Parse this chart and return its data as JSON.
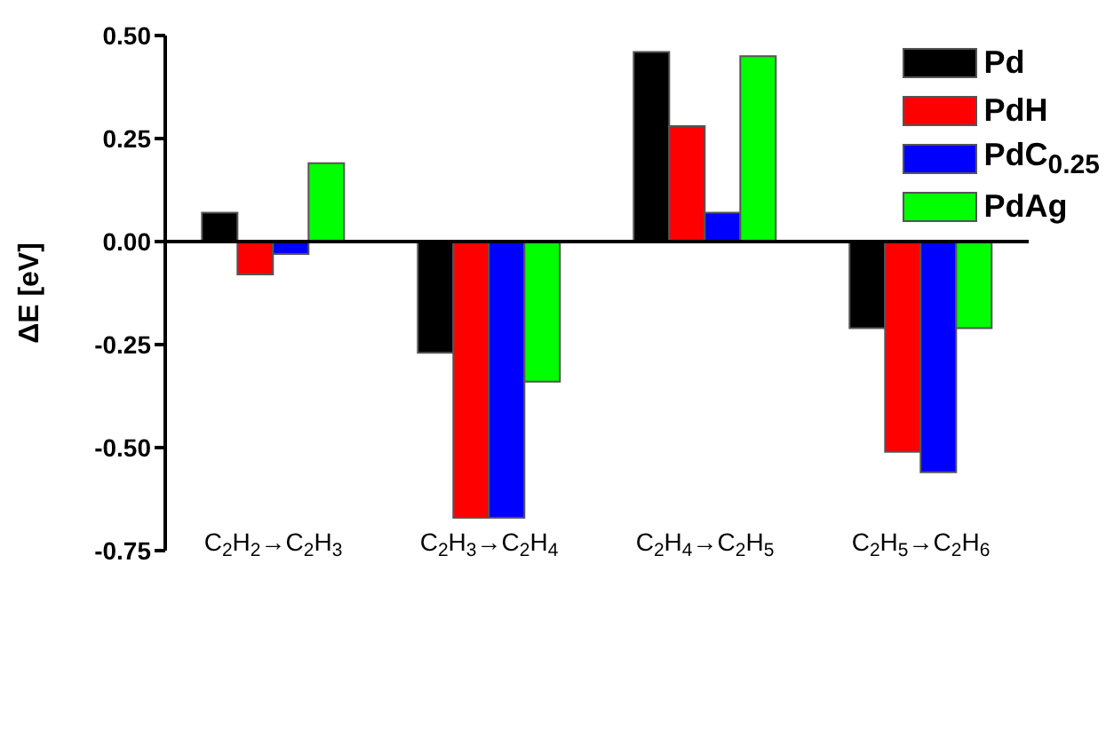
{
  "chart_data": {
    "type": "bar",
    "ylabel": "ΔE [eV]",
    "categories": [
      "C$_{2}$H$_{2}$→C$_{2}$H$_{3}$",
      "C$_{2}$H$_{3}$→C$_{2}$H$_{4}$",
      "C$_{2}$H$_{4}$→C$_{2}$H$_{5}$",
      "C$_{2}$H$_{5}$→C$_{2}$H$_{6}$"
    ],
    "series": [
      {
        "name": "Pd",
        "color": "#000000",
        "values": [
          0.07,
          -0.27,
          0.46,
          -0.21
        ]
      },
      {
        "name": "PdH",
        "color": "#ff0000",
        "values": [
          -0.08,
          -0.67,
          0.28,
          -0.51
        ]
      },
      {
        "name": "PdC$_{0.25}$",
        "color": "#0000ff",
        "values": [
          -0.03,
          -0.67,
          0.07,
          -0.56
        ]
      },
      {
        "name": "PdAg",
        "color": "#00ff00",
        "values": [
          0.19,
          -0.34,
          0.45,
          -0.21
        ]
      }
    ],
    "ylim": [
      -0.75,
      0.5
    ],
    "yticks": [
      {
        "value": -0.75,
        "label": "-0.75"
      },
      {
        "value": -0.5,
        "label": "-0.50"
      },
      {
        "value": -0.25,
        "label": "-0.25"
      },
      {
        "value": 0,
        "label": "0.00"
      },
      {
        "value": 0.25,
        "label": "0.25"
      },
      {
        "value": 0.5,
        "label": "0.50"
      }
    ],
    "legend": "top right"
  }
}
